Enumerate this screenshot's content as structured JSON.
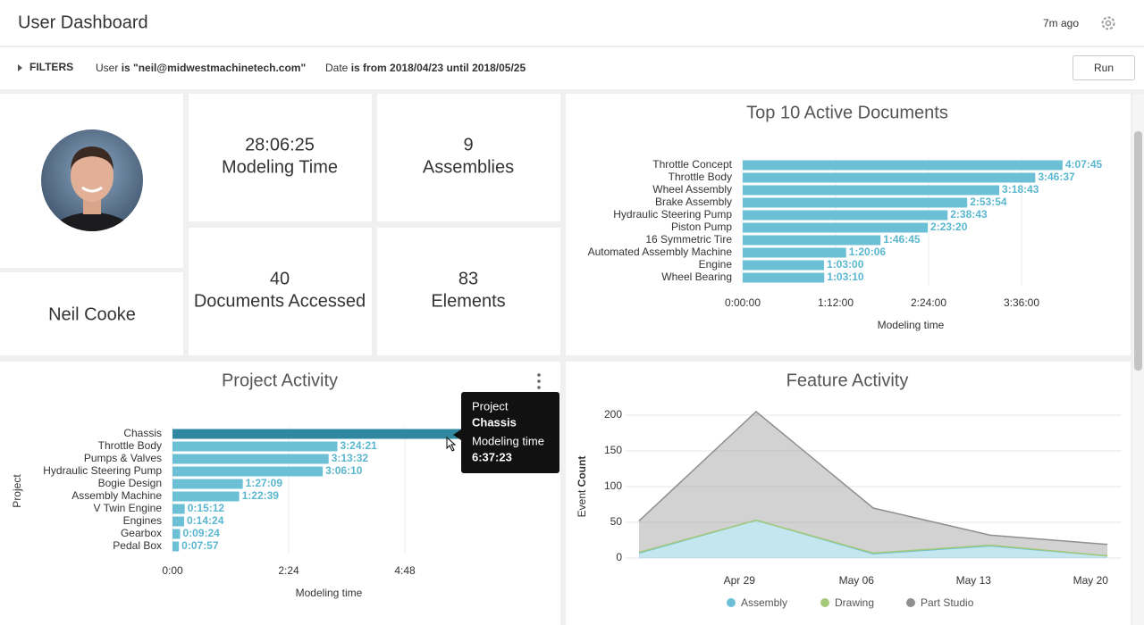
{
  "header": {
    "title": "User Dashboard",
    "updated": "7m ago"
  },
  "filters": {
    "label": "FILTERS",
    "run": "Run",
    "items": [
      {
        "field": "User",
        "condition": "is \"neil@midwestmachinetech.com\""
      },
      {
        "field": "Date",
        "condition": "is from 2018/04/23 until 2018/05/25"
      }
    ]
  },
  "user": {
    "name": "Neil Cooke"
  },
  "stats": [
    {
      "value": "28:06:25",
      "label": "Modeling Time"
    },
    {
      "value": 9,
      "label": "Assemblies"
    },
    {
      "value": 40,
      "label": "Documents Accessed"
    },
    {
      "value": 83,
      "label": "Elements"
    }
  ],
  "chart_data": [
    {
      "type": "hbar",
      "title": "Top 10 Active Documents",
      "xlabel": "Modeling time",
      "color": "#6cc0d6",
      "categories": [
        "Throttle Concept",
        "Throttle Body",
        "Wheel Assembly",
        "Brake Assembly",
        "Hydraulic Steering Pump",
        "Piston Pump",
        "16 Symmetric Tire",
        "Automated Assembly Machine",
        "Engine",
        "Wheel Bearing"
      ],
      "values": [
        14865,
        13597,
        11923,
        10434,
        9523,
        8600,
        6405,
        4806,
        3780,
        3790
      ],
      "value_labels": [
        "4:07:45",
        "3:46:37",
        "3:18:43",
        "2:53:54",
        "2:38:43",
        "2:23:20",
        "1:46:45",
        "1:20:06",
        "1:03:00",
        "1:03:10"
      ],
      "xlim": [
        0,
        17280
      ],
      "xticks": [
        {
          "value": 0,
          "label": "0:00:00"
        },
        {
          "value": 4320,
          "label": "1:12:00"
        },
        {
          "value": 8640,
          "label": "2:24:00"
        },
        {
          "value": 12960,
          "label": "3:36:00"
        }
      ],
      "grid": true
    },
    {
      "type": "hbar",
      "title": "Project Activity",
      "xlabel": "Modeling time",
      "ylabel": "Project",
      "color": "#6cc0d6",
      "highlight_color": "#2f88a0",
      "categories": [
        "Chassis",
        "Throttle Body",
        "Pumps & Valves",
        "Hydraulic Steering Pump",
        "Bogie Design",
        "Assembly Machine",
        "V Twin Engine",
        "Engines",
        "Gearbox",
        "Pedal Box"
      ],
      "values": [
        23843,
        12261,
        11612,
        11170,
        5229,
        4959,
        912,
        864,
        564,
        477
      ],
      "value_labels": [
        "6:37:23",
        "3:24:21",
        "3:13:32",
        "3:06:10",
        "1:27:09",
        "1:22:39",
        "0:15:12",
        "0:14:24",
        "0:09:24",
        "0:07:57"
      ],
      "xlim": [
        0,
        25920
      ],
      "xticks": [
        {
          "value": 0,
          "label": "0:00"
        },
        {
          "value": 8640,
          "label": "2:24"
        },
        {
          "value": 17280,
          "label": "4:48"
        }
      ],
      "grid": true
    },
    {
      "type": "area",
      "title": "Feature Activity",
      "stacked": true,
      "ylabel": "Event",
      "ylabel_bold": "Count",
      "x": [
        "Apr 23",
        "Apr 30",
        "May 07",
        "May 14",
        "May 21"
      ],
      "xticks": [
        "Apr 29",
        "May 06",
        "May 13",
        "May 20"
      ],
      "series": [
        {
          "name": "Assembly",
          "color": "#6cc0d6",
          "values": [
            7,
            53,
            6,
            17,
            3
          ]
        },
        {
          "name": "Drawing",
          "color": "#a5c97a",
          "values": [
            1,
            0,
            1,
            1,
            0
          ]
        },
        {
          "name": "Part Studio",
          "color": "#8f8f8f",
          "values": [
            44,
            152,
            63,
            14,
            16
          ]
        }
      ],
      "ylim": [
        0,
        220
      ],
      "yticks": [
        0,
        50,
        100,
        150,
        200
      ],
      "grid": true
    }
  ]
}
